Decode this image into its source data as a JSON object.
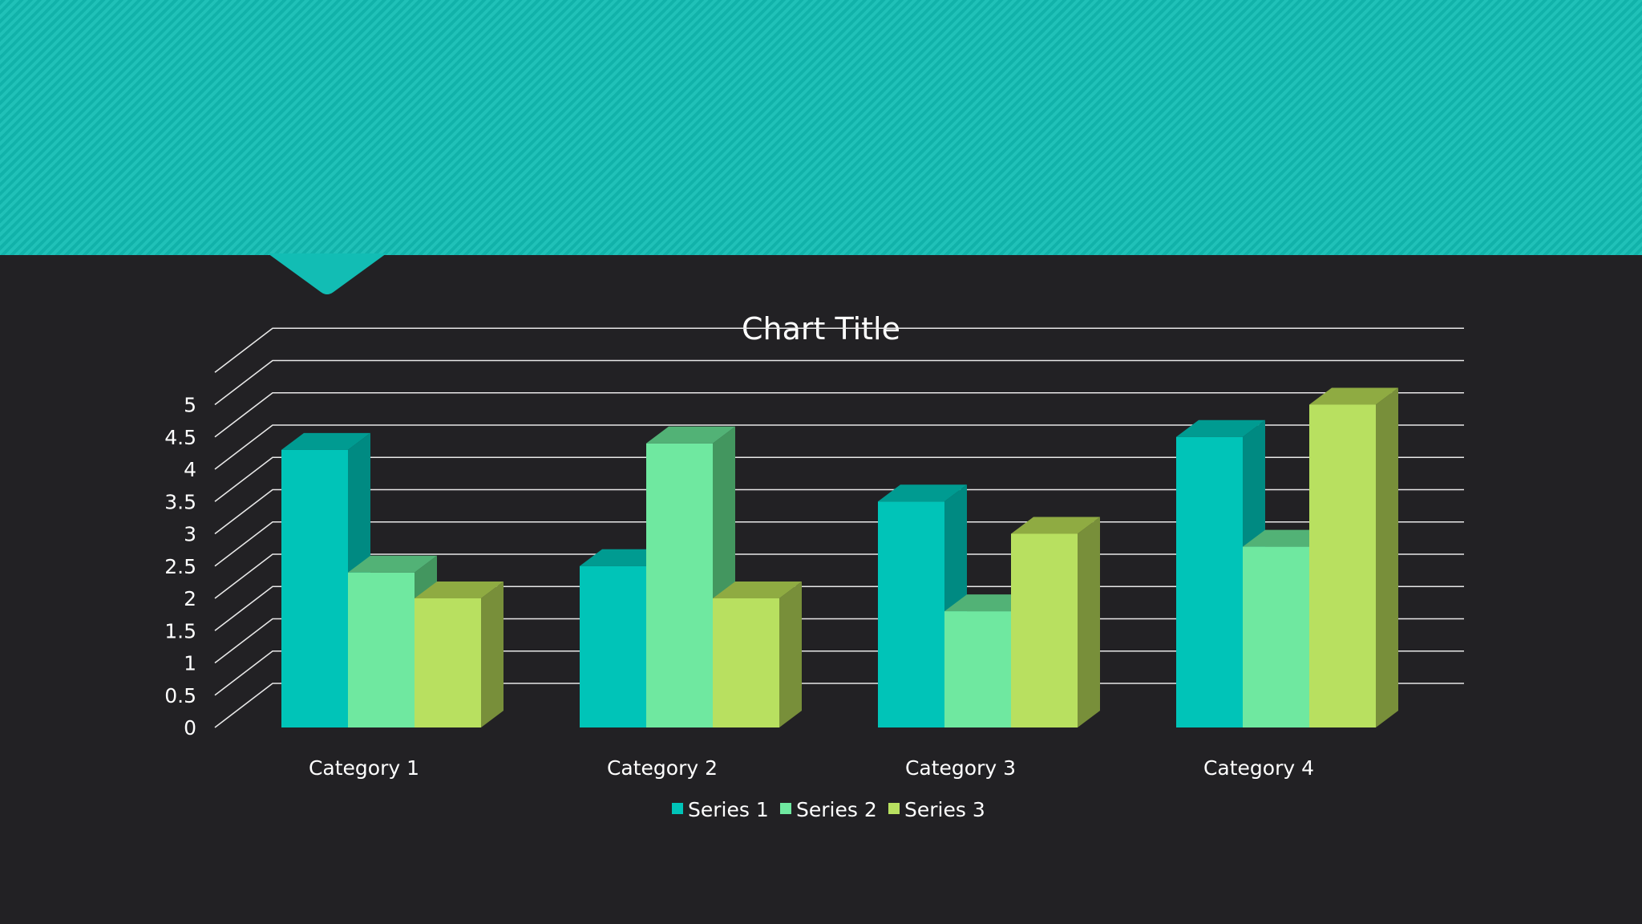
{
  "chart_data": {
    "type": "bar",
    "title": "Chart Title",
    "categories": [
      "Category 1",
      "Category 2",
      "Category 3",
      "Category 4"
    ],
    "series": [
      {
        "name": "Series 1",
        "values": [
          4.3,
          2.5,
          3.5,
          4.5
        ],
        "color": "#00c4b8",
        "side": "#008a82",
        "top": "#009b91"
      },
      {
        "name": "Series 2",
        "values": [
          2.4,
          4.4,
          1.8,
          2.8
        ],
        "color": "#6fe8a0",
        "side": "#43965f",
        "top": "#52b276"
      },
      {
        "name": "Series 3",
        "values": [
          2.0,
          2.0,
          3.0,
          5.0
        ],
        "color": "#b8e060",
        "side": "#788f3a",
        "top": "#8fab42"
      }
    ],
    "yticks": [
      "0",
      "0.5",
      "1",
      "1.5",
      "2",
      "2.5",
      "3",
      "3.5",
      "4",
      "4.5",
      "5"
    ],
    "ylim": [
      0,
      5.5
    ],
    "grid": true,
    "legend": "bottom",
    "theme": {
      "banner": "#12bdb4",
      "background": "#222124",
      "text": "#ffffff",
      "grid": "#e8e8e8"
    }
  }
}
